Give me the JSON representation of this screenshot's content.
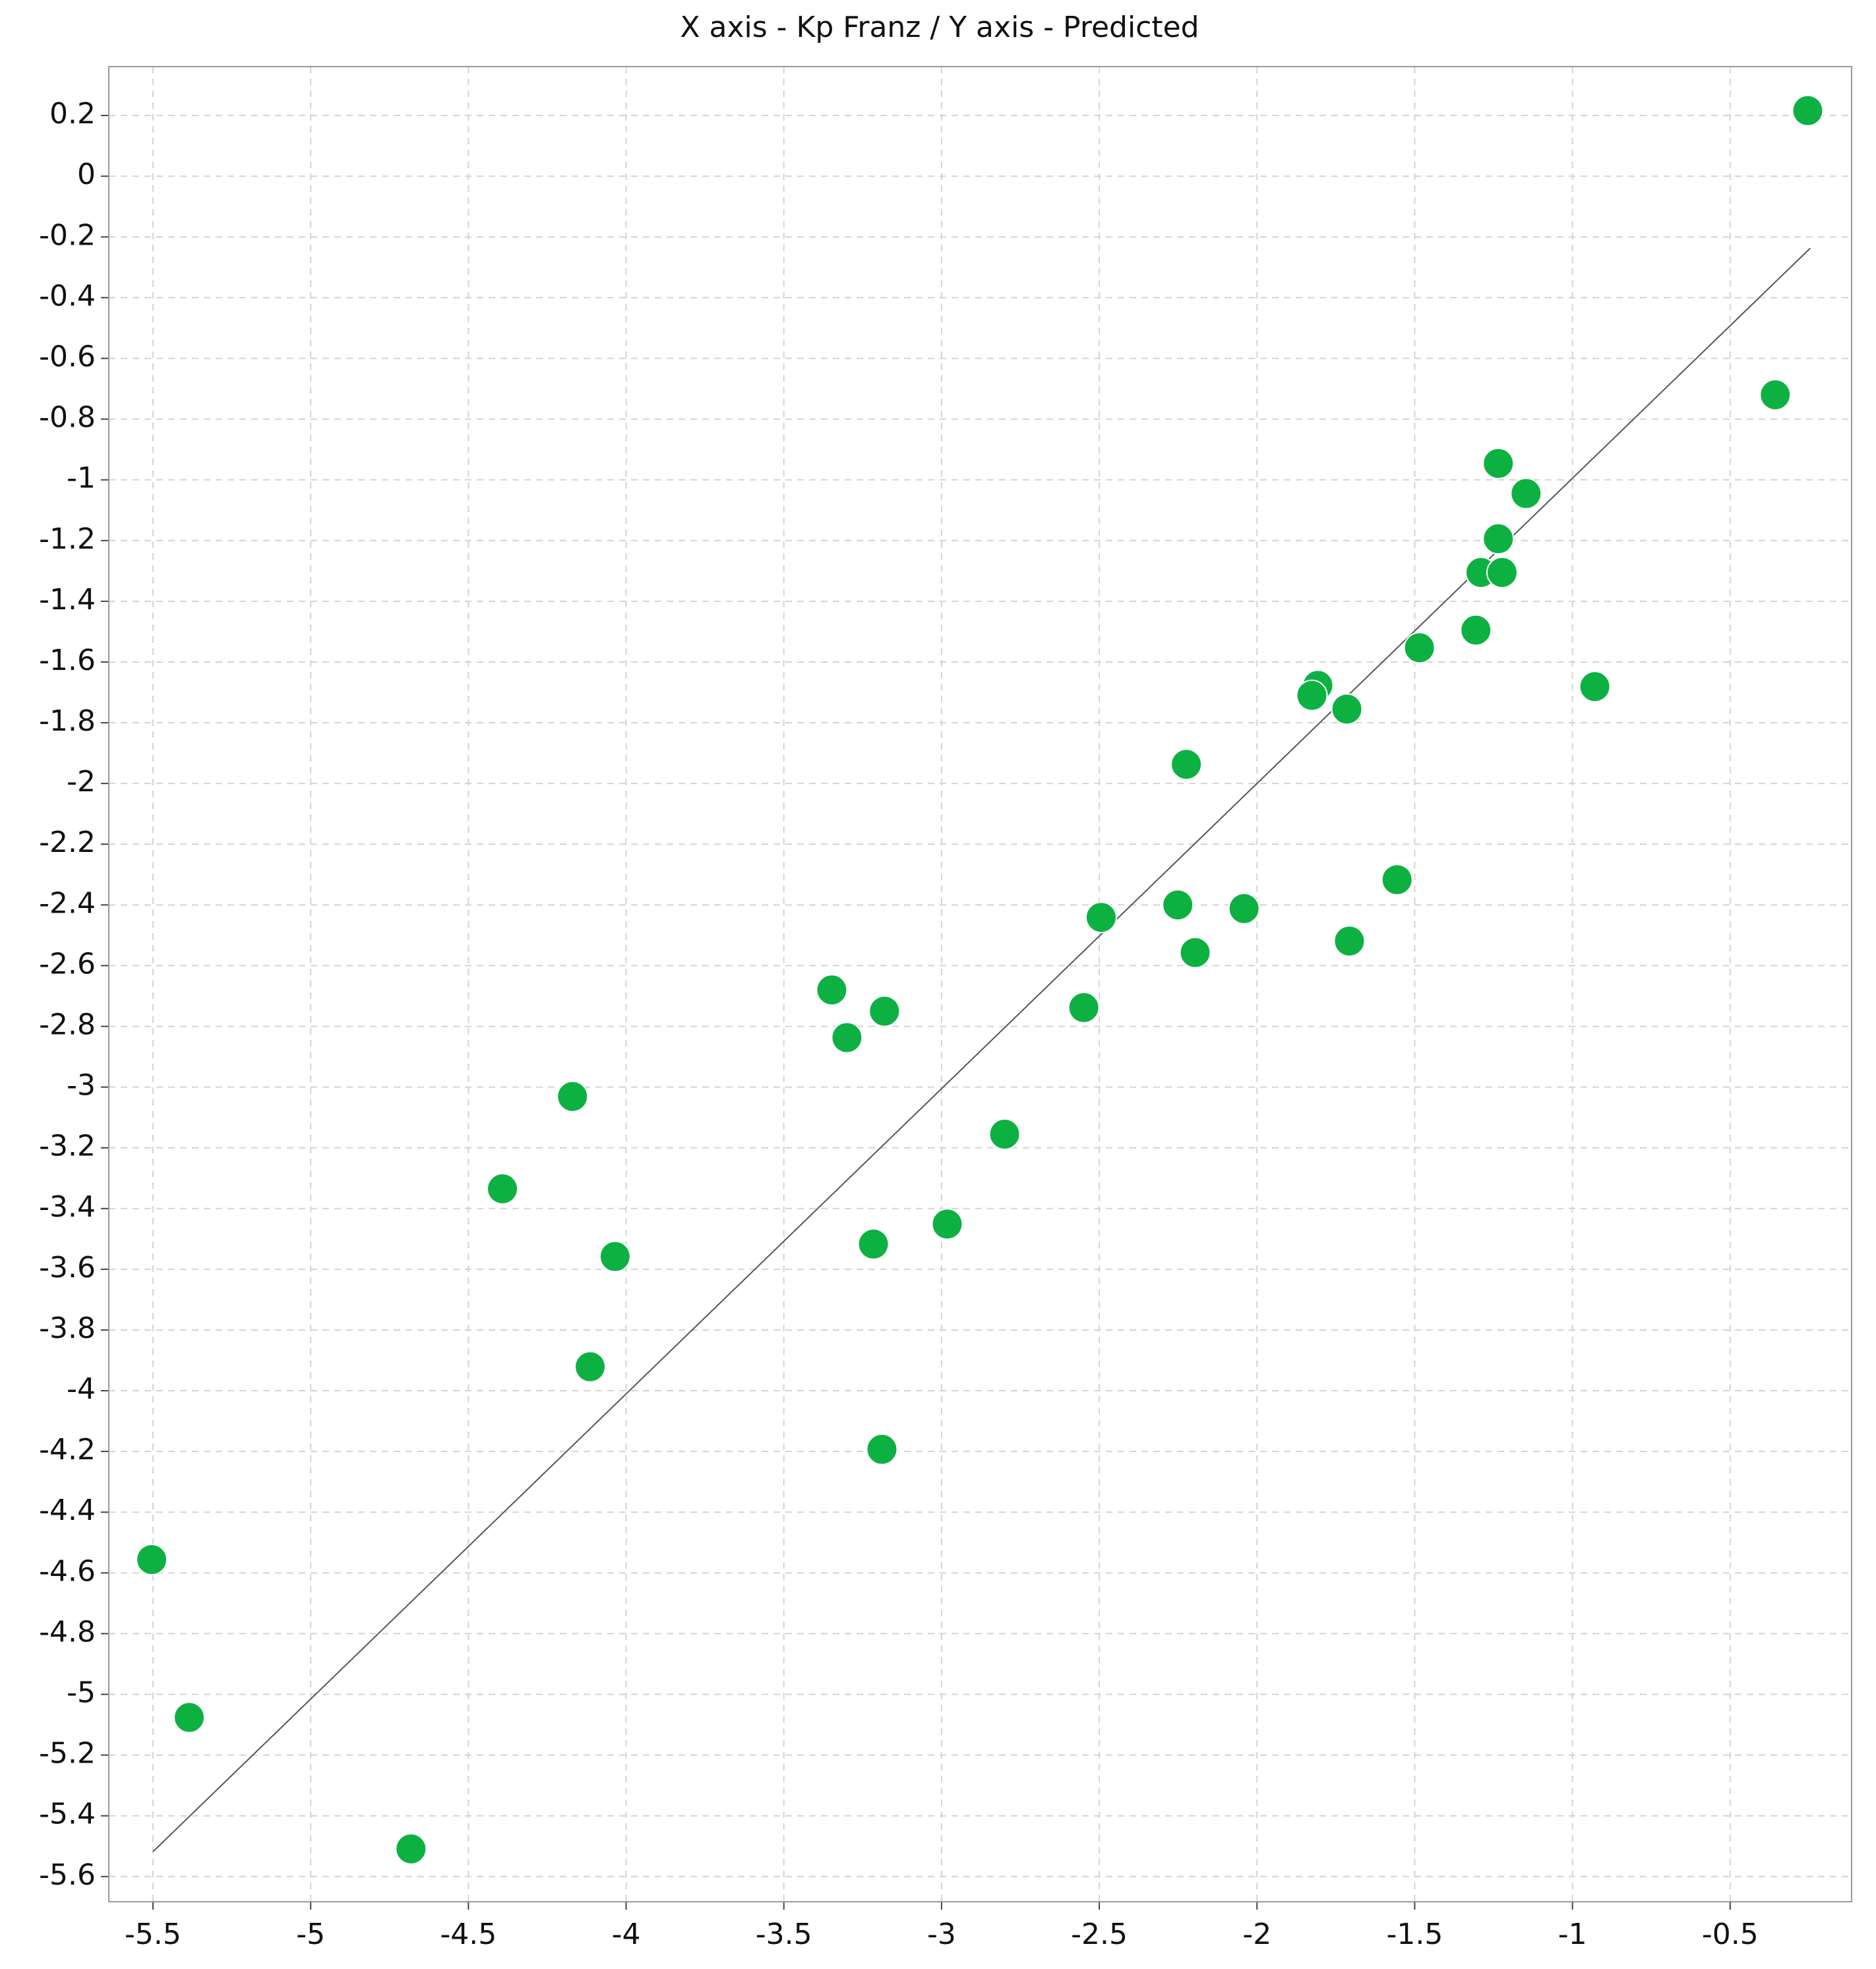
{
  "chart_data": {
    "type": "scatter",
    "title": "X axis - Kp Franz / Y axis - Predicted",
    "xlim": [
      -5.64,
      -0.115
    ],
    "ylim": [
      -5.683,
      0.361
    ],
    "xticks": [
      -5.5,
      -5,
      -4.5,
      -4,
      -3.5,
      -3,
      -2.5,
      -2,
      -1.5,
      -1,
      -0.5
    ],
    "yticks": [
      0.2,
      0,
      -0.2,
      -0.4,
      -0.6,
      -0.8,
      -1,
      -1.2,
      -1.4,
      -1.6,
      -1.8,
      -2,
      -2.2,
      -2.4,
      -2.6,
      -2.8,
      -3,
      -3.2,
      -3.4,
      -3.6,
      -3.8,
      -4,
      -4.2,
      -4.4,
      -4.6,
      -4.8,
      -5,
      -5.2,
      -5.4,
      -5.6
    ],
    "grid": true,
    "series": [
      {
        "type": "scatter",
        "color": "#0db142",
        "x": [
          -0.254,
          -0.357,
          -1.235,
          -1.147,
          -1.235,
          -1.29,
          -1.223,
          -1.306,
          -1.485,
          -0.929,
          -1.807,
          -1.826,
          -1.715,
          -2.224,
          -1.556,
          -2.494,
          -2.251,
          -2.041,
          -2.196,
          -1.707,
          -3.348,
          -3.181,
          -3.3,
          -2.549,
          -4.17,
          -2.8,
          -4.392,
          -2.982,
          -4.035,
          -3.216,
          -4.114,
          -3.189,
          -5.504,
          -5.385,
          -4.682
        ],
        "y": [
          0.216,
          -0.72,
          -0.946,
          -1.045,
          -1.194,
          -1.305,
          -1.305,
          -1.495,
          -1.553,
          -1.681,
          -1.677,
          -1.71,
          -1.755,
          -1.937,
          -2.317,
          -2.441,
          -2.4,
          -2.412,
          -2.557,
          -2.519,
          -2.68,
          -2.75,
          -2.837,
          -2.738,
          -3.031,
          -3.155,
          -3.335,
          -3.451,
          -3.558,
          -3.517,
          -3.921,
          -4.193,
          -4.556,
          -5.076,
          -5.509
        ]
      },
      {
        "type": "line",
        "color": "#555555",
        "x": [
          -5.5,
          -0.246
        ],
        "y": [
          -5.518,
          -0.237
        ]
      }
    ]
  }
}
